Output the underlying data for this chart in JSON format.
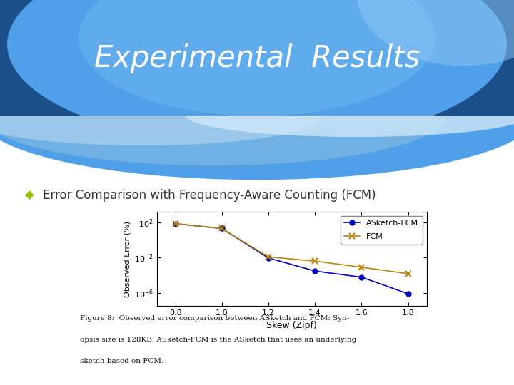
{
  "title": "Experimental  Results",
  "bullet_text": "Error Comparison with Frequency-Aware Counting (FCM)",
  "asketch_x": [
    0.8,
    1.0,
    1.2,
    1.4,
    1.6,
    1.8
  ],
  "asketch_y": [
    70,
    20,
    0.009,
    0.0003,
    6e-05,
    8e-07
  ],
  "fcm_x": [
    0.8,
    1.0,
    1.2,
    1.4,
    1.6,
    1.8
  ],
  "fcm_y": [
    70,
    20,
    0.012,
    0.004,
    0.0008,
    0.00015
  ],
  "asketch_color": "#0000bb",
  "fcm_color": "#b8860b",
  "xlabel": "Skew (Zipf)",
  "ylabel": "Observed Error (%)",
  "yticks": [
    100.0,
    0.01,
    1e-06
  ],
  "ytick_labels": [
    "10$^{2}$",
    "10$^{-2}$",
    "10$^{-6}$"
  ],
  "xticks": [
    0.8,
    1.0,
    1.2,
    1.4,
    1.6,
    1.8
  ],
  "caption_line1": "Figure 8:  Observed error comparison between ASketch and FCM: Syn-",
  "caption_line2": "opsis size is 128KB, ASketch-FCM is the ASketch that uses an underlying",
  "caption_line3": "sketch based on FCM.",
  "slide_bg_color": "#ffffff",
  "bullet_color": "#90c000",
  "header_text_color": "#ffffff",
  "header_dark": "#1a4f8a",
  "header_mid": "#2878c8",
  "header_light": "#4fa0e8",
  "wave_light": "#b8d8f0",
  "wave_mid": "#80b8e0"
}
